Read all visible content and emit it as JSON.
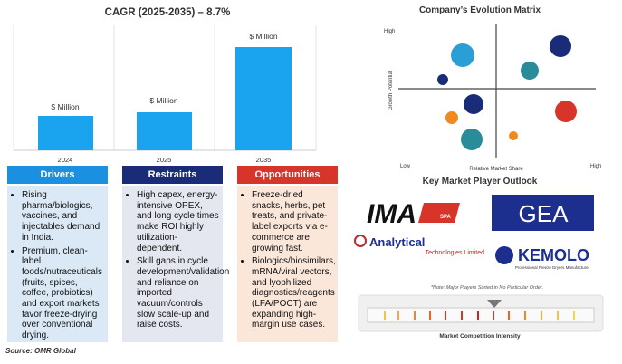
{
  "cagr": {
    "title": "CAGR (2025-2035) – 8.7%",
    "bars": [
      {
        "label": "$ Million",
        "year": "2024"
      },
      {
        "label": "$ Million",
        "year": "2025"
      },
      {
        "label": "$ Million",
        "year": "2035"
      }
    ]
  },
  "panels": [
    {
      "title": "Drivers",
      "items": [
        "Rising pharma/biologics, vaccines, and injectables demand in India.",
        "Premium, clean-label foods/nutraceuticals (fruits, spices, coffee, probiotics) and export markets favor freeze-drying over conventional drying."
      ]
    },
    {
      "title": "Restraints",
      "items": [
        "High capex, energy-intensive OPEX, and long cycle times make ROI highly utilization-dependent.",
        "Skill gaps in cycle development/validation and reliance on imported vacuum/controls slow scale-up and raise costs."
      ]
    },
    {
      "title": "Opportunities",
      "items": [
        "Freeze-dried snacks, herbs, pet treats, and private-label exports via e-commerce are growing fast.",
        "Biologics/biosimilars, mRNA/viral vectors, and lyophilized diagnostics/reagents (LFA/POCT) are expanding high-margin use cases."
      ]
    }
  ],
  "source": "Source: OMR Global",
  "matrix": {
    "title": "Company’s Evolution Matrix",
    "y_axis": "Growth Potential",
    "x_axis": "Relative Market Share",
    "y_high": "High",
    "low": "Low",
    "x_high": "High"
  },
  "players": {
    "title": "Key Market Player Outlook",
    "ima": "IMA",
    "ima_sub": "SPA",
    "gea": "GEA",
    "analytical": "Analytical",
    "analytical_sub": "Technologies Limited",
    "kemolo": "KEMOLO",
    "kemolo_sub": "Professional Freeze Dryers Manufacturer"
  },
  "intensity": {
    "note": "*Note: Major Players Sorted in No Particular Order.",
    "label": "Market Competition Intensity"
  }
}
